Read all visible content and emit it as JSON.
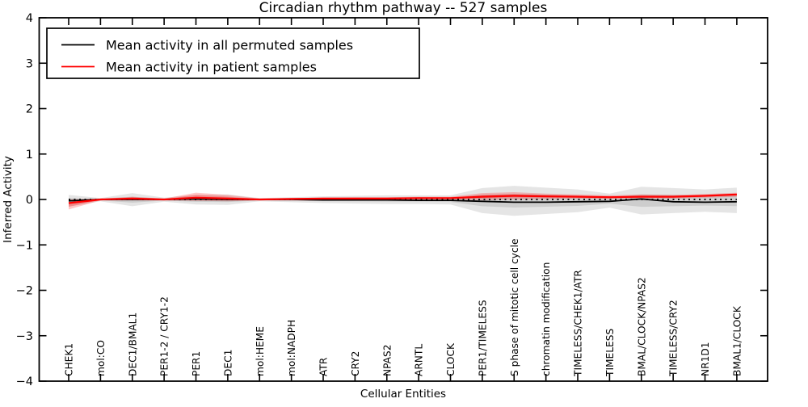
{
  "figure": {
    "title": "Circadian rhythm pathway -- 527 samples",
    "xlabel": "Cellular Entities",
    "ylabel": "Inferred Activity"
  },
  "legend": {
    "entries": [
      {
        "label": "Mean activity in all permuted samples",
        "color": "#000000"
      },
      {
        "label": "Mean activity in patient samples",
        "color": "#ff0000"
      }
    ]
  },
  "chart_data": {
    "type": "line",
    "title": "Circadian rhythm pathway -- 527 samples",
    "xlabel": "Cellular Entities",
    "ylabel": "Inferred Activity",
    "ylim": [
      -4,
      4
    ],
    "yticks": [
      4,
      3,
      2,
      1,
      0,
      -1,
      -2,
      -3,
      -4
    ],
    "grid": false,
    "legend_position": "upper left",
    "categories": [
      "CHEK1",
      "mol:CO",
      "DEC1/BMAL1",
      "PER1-2 / CRY1-2",
      "PER1",
      "DEC1",
      "mol:HEME",
      "mol:NADPH",
      "ATR",
      "CRY2",
      "NPAS2",
      "ARNTL",
      "CLOCK",
      "PER1/TIMELESS",
      "S phase of mitotic cell cycle",
      "chromatin modification",
      "TIMELESS/CHEK1/ATR",
      "TIMELESS",
      "BMAL/CLOCK/NPAS2",
      "TIMELESS/CRY2",
      "NR1D1",
      "BMAL1/CLOCK"
    ],
    "series": [
      {
        "name": "zero-reference",
        "color": "#000000",
        "style": "dotted",
        "width": 1.8,
        "values": [
          0,
          0,
          0,
          0,
          0,
          0,
          0,
          0,
          0,
          0,
          0,
          0,
          0,
          0,
          0,
          0,
          0,
          0,
          0,
          0,
          0,
          0
        ]
      },
      {
        "name": "Mean activity in all permuted samples",
        "color": "#000000",
        "style": "solid",
        "width": 1.8,
        "values": [
          -0.03,
          0.0,
          0.0,
          0.0,
          0.01,
          0.0,
          0.0,
          0.0,
          -0.01,
          -0.01,
          -0.01,
          -0.02,
          -0.02,
          -0.04,
          -0.06,
          -0.06,
          -0.05,
          -0.04,
          0.01,
          -0.05,
          -0.06,
          -0.05
        ]
      },
      {
        "name": "Mean activity in patient samples",
        "color": "#ff0000",
        "style": "solid",
        "width": 2.2,
        "values": [
          -0.08,
          0.0,
          0.02,
          0.0,
          0.04,
          0.02,
          0.0,
          0.01,
          0.02,
          0.02,
          0.02,
          0.03,
          0.03,
          0.06,
          0.08,
          0.07,
          0.06,
          0.05,
          0.06,
          0.06,
          0.08,
          0.11
        ]
      }
    ],
    "bands": [
      {
        "name": "permuted-band",
        "color": "#000000",
        "opacity": 0.1,
        "layers": [
          1.0,
          0.45
        ],
        "upper": [
          0.1,
          0.03,
          0.14,
          0.04,
          0.1,
          0.11,
          0.03,
          0.05,
          0.07,
          0.08,
          0.09,
          0.09,
          0.09,
          0.25,
          0.3,
          0.26,
          0.22,
          0.13,
          0.28,
          0.25,
          0.22,
          0.26
        ],
        "lower": [
          -0.16,
          -0.04,
          -0.15,
          -0.05,
          -0.11,
          -0.12,
          -0.04,
          -0.06,
          -0.08,
          -0.09,
          -0.1,
          -0.1,
          -0.11,
          -0.3,
          -0.36,
          -0.32,
          -0.28,
          -0.18,
          -0.33,
          -0.3,
          -0.27,
          -0.3
        ]
      },
      {
        "name": "patient-band",
        "color": "#ff0000",
        "opacity": 0.22,
        "layers": [
          1.0,
          0.45
        ],
        "upper": [
          0.0,
          0.02,
          0.06,
          0.02,
          0.15,
          0.1,
          0.02,
          0.03,
          0.04,
          0.05,
          0.05,
          0.06,
          0.06,
          0.14,
          0.16,
          0.13,
          0.11,
          0.09,
          0.11,
          0.1,
          0.12,
          0.15
        ],
        "lower": [
          -0.22,
          -0.02,
          -0.02,
          -0.02,
          -0.03,
          -0.04,
          -0.02,
          -0.01,
          0.0,
          0.0,
          0.0,
          0.0,
          0.0,
          -0.01,
          0.0,
          0.01,
          0.02,
          0.01,
          0.02,
          0.02,
          0.04,
          0.06
        ]
      }
    ]
  }
}
